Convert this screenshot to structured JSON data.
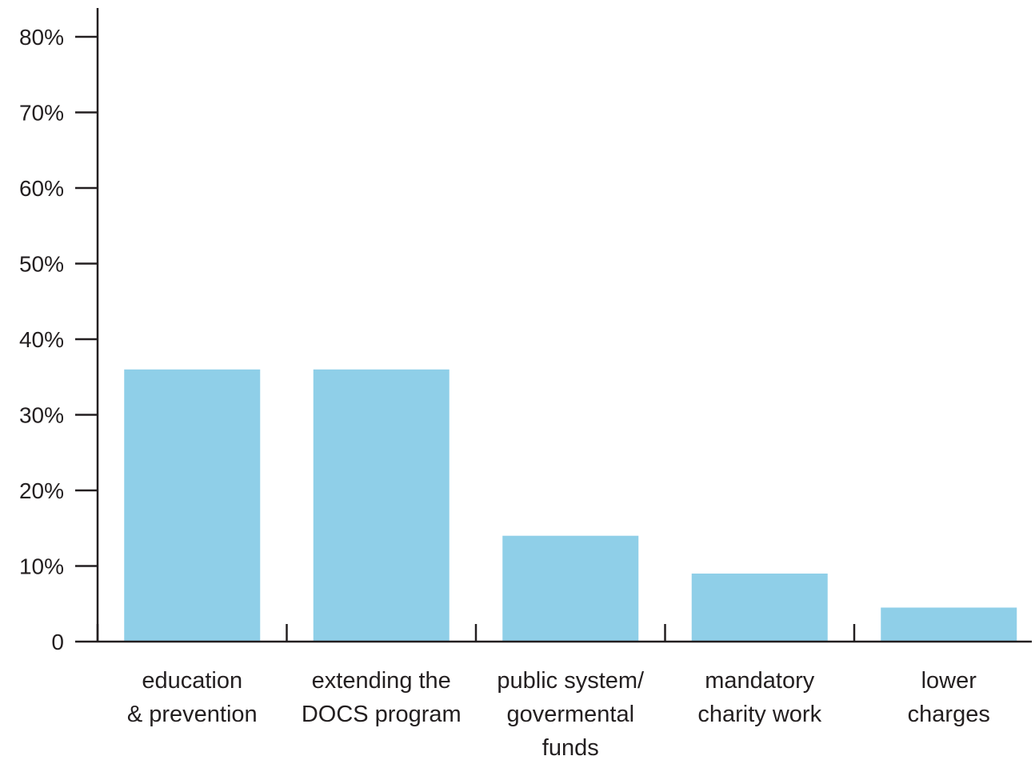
{
  "chart_data": {
    "type": "bar",
    "categories": [
      [
        "education",
        "& prevention"
      ],
      [
        "extending the",
        "DOCS program"
      ],
      [
        "public system/",
        "govermental",
        "funds"
      ],
      [
        "mandatory",
        "charity work"
      ],
      [
        "lower",
        "charges"
      ]
    ],
    "values": [
      36,
      36,
      14,
      9,
      4.5
    ],
    "unit": "%",
    "ylim": [
      0,
      80
    ],
    "yticks": [
      0,
      10,
      20,
      30,
      40,
      50,
      60,
      70,
      80
    ],
    "ytick_labels": [
      "0",
      "10%",
      "20%",
      "30%",
      "40%",
      "50%",
      "60%",
      "70%",
      "80%"
    ],
    "title": "",
    "xlabel": "",
    "ylabel": "",
    "grid": false,
    "legend": "none",
    "colors": {
      "bar": "#8fcfe8",
      "axis": "#231f20",
      "text": "#231f20"
    }
  }
}
